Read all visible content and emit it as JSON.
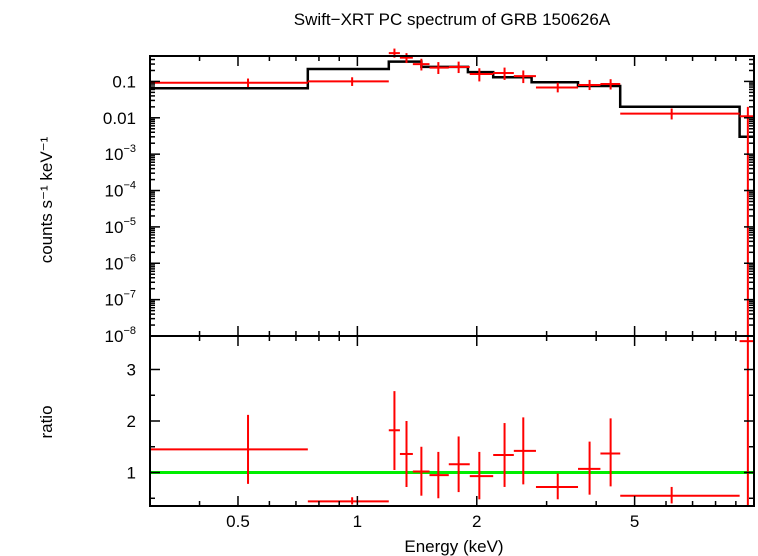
{
  "chart_data": [
    {
      "type": "line",
      "title": "Swift−XRT PC spectrum of GRB 150626A",
      "ylabel": "counts s⁻¹ keV⁻¹",
      "xlabel": "",
      "x_scale": "log",
      "y_scale": "log",
      "xlim": [
        0.3,
        10
      ],
      "ylim": [
        1e-08,
        0.5
      ],
      "ytick_labels": [
        {
          "value": 0.1,
          "label": "0.1"
        },
        {
          "value": 0.01,
          "label": "0.01"
        },
        {
          "value": 0.001,
          "base": "10",
          "exp": "−3"
        },
        {
          "value": 0.0001,
          "base": "10",
          "exp": "−4"
        },
        {
          "value": 1e-05,
          "base": "10",
          "exp": "−5"
        },
        {
          "value": 1e-06,
          "base": "10",
          "exp": "−6"
        },
        {
          "value": 1e-07,
          "base": "10",
          "exp": "−7"
        },
        {
          "value": 1e-08,
          "base": "10",
          "exp": "−8"
        }
      ],
      "series": [
        {
          "kind": "model",
          "color": "#000000",
          "steps": [
            {
              "x0": 0.3,
              "x1": 0.75,
              "y": 0.065
            },
            {
              "x0": 0.75,
              "x1": 1.2,
              "y": 0.22
            },
            {
              "x0": 1.2,
              "x1": 1.45,
              "y": 0.35
            },
            {
              "x0": 1.45,
              "x1": 1.9,
              "y": 0.25
            },
            {
              "x0": 1.9,
              "x1": 2.2,
              "y": 0.18
            },
            {
              "x0": 2.2,
              "x1": 2.75,
              "y": 0.13
            },
            {
              "x0": 2.75,
              "x1": 3.6,
              "y": 0.095
            },
            {
              "x0": 3.6,
              "x1": 4.6,
              "y": 0.075
            },
            {
              "x0": 4.6,
              "x1": 9.2,
              "y": 0.02
            },
            {
              "x0": 9.2,
              "x1": 10,
              "y": 0.003
            }
          ]
        },
        {
          "kind": "data",
          "color": "#ff0000",
          "points": [
            {
              "x": 0.53,
              "xlo": 0.3,
              "xhi": 0.75,
              "y": 0.092,
              "ylo": 0.07,
              "yhi": 0.12
            },
            {
              "x": 0.97,
              "xlo": 0.75,
              "xhi": 1.2,
              "y": 0.1,
              "ylo": 0.075,
              "yhi": 0.13
            },
            {
              "x": 1.24,
              "xlo": 1.2,
              "xhi": 1.28,
              "y": 0.6,
              "ylo": 0.45,
              "yhi": 0.8
            },
            {
              "x": 1.33,
              "xlo": 1.28,
              "xhi": 1.38,
              "y": 0.45,
              "ylo": 0.32,
              "yhi": 0.6
            },
            {
              "x": 1.45,
              "xlo": 1.38,
              "xhi": 1.52,
              "y": 0.3,
              "ylo": 0.2,
              "yhi": 0.42
            },
            {
              "x": 1.6,
              "xlo": 1.52,
              "xhi": 1.7,
              "y": 0.24,
              "ylo": 0.16,
              "yhi": 0.34
            },
            {
              "x": 1.8,
              "xlo": 1.7,
              "xhi": 1.92,
              "y": 0.25,
              "ylo": 0.17,
              "yhi": 0.35
            },
            {
              "x": 2.03,
              "xlo": 1.92,
              "xhi": 2.2,
              "y": 0.16,
              "ylo": 0.1,
              "yhi": 0.23
            },
            {
              "x": 2.35,
              "xlo": 2.2,
              "xhi": 2.48,
              "y": 0.17,
              "ylo": 0.11,
              "yhi": 0.24
            },
            {
              "x": 2.62,
              "xlo": 2.48,
              "xhi": 2.82,
              "y": 0.14,
              "ylo": 0.09,
              "yhi": 0.2
            },
            {
              "x": 3.2,
              "xlo": 2.82,
              "xhi": 3.6,
              "y": 0.068,
              "ylo": 0.05,
              "yhi": 0.092
            },
            {
              "x": 3.85,
              "xlo": 3.6,
              "xhi": 4.1,
              "y": 0.08,
              "ylo": 0.058,
              "yhi": 0.11
            },
            {
              "x": 4.35,
              "xlo": 4.1,
              "xhi": 4.6,
              "y": 0.085,
              "ylo": 0.06,
              "yhi": 0.115
            },
            {
              "x": 6.2,
              "xlo": 4.6,
              "xhi": 9.2,
              "y": 0.013,
              "ylo": 0.009,
              "yhi": 0.018
            },
            {
              "x": 9.65,
              "xlo": 9.2,
              "xhi": 10,
              "y": 0.011,
              "ylo": 1e-08,
              "yhi": 0.02
            }
          ]
        }
      ]
    },
    {
      "type": "line",
      "xlabel": "Energy (keV)",
      "ylabel": "ratio",
      "x_scale": "log",
      "xlim": [
        0.3,
        10
      ],
      "ylim": [
        0.35,
        3.65
      ],
      "xtick_labels": [
        {
          "value": 0.5,
          "label": "0.5"
        },
        {
          "value": 1,
          "label": "1"
        },
        {
          "value": 2,
          "label": "2"
        },
        {
          "value": 5,
          "label": "5"
        }
      ],
      "ytick_labels": [
        {
          "value": 1,
          "label": "1"
        },
        {
          "value": 2,
          "label": "2"
        },
        {
          "value": 3,
          "label": "3"
        }
      ],
      "series": [
        {
          "kind": "reference",
          "color": "#00ee00",
          "y": 1.0
        },
        {
          "kind": "data",
          "color": "#ff0000",
          "points": [
            {
              "x": 0.53,
              "xlo": 0.3,
              "xhi": 0.75,
              "y": 1.45,
              "ylo": 0.78,
              "yhi": 2.12
            },
            {
              "x": 0.97,
              "xlo": 0.75,
              "xhi": 1.2,
              "y": 0.44,
              "ylo": 0.38,
              "yhi": 0.52
            },
            {
              "x": 1.24,
              "xlo": 1.2,
              "xhi": 1.28,
              "y": 1.82,
              "ylo": 1.05,
              "yhi": 2.58
            },
            {
              "x": 1.33,
              "xlo": 1.28,
              "xhi": 1.38,
              "y": 1.36,
              "ylo": 0.72,
              "yhi": 2.0
            },
            {
              "x": 1.45,
              "xlo": 1.38,
              "xhi": 1.52,
              "y": 1.02,
              "ylo": 0.55,
              "yhi": 1.5
            },
            {
              "x": 1.6,
              "xlo": 1.52,
              "xhi": 1.7,
              "y": 0.95,
              "ylo": 0.5,
              "yhi": 1.4
            },
            {
              "x": 1.8,
              "xlo": 1.7,
              "xhi": 1.92,
              "y": 1.16,
              "ylo": 0.62,
              "yhi": 1.7
            },
            {
              "x": 2.03,
              "xlo": 1.92,
              "xhi": 2.2,
              "y": 0.93,
              "ylo": 0.48,
              "yhi": 1.4
            },
            {
              "x": 2.35,
              "xlo": 2.2,
              "xhi": 2.48,
              "y": 1.34,
              "ylo": 0.72,
              "yhi": 1.96
            },
            {
              "x": 2.62,
              "xlo": 2.48,
              "xhi": 2.82,
              "y": 1.42,
              "ylo": 0.77,
              "yhi": 2.07
            },
            {
              "x": 3.2,
              "xlo": 2.82,
              "xhi": 3.6,
              "y": 0.72,
              "ylo": 0.48,
              "yhi": 0.98
            },
            {
              "x": 3.85,
              "xlo": 3.6,
              "xhi": 4.1,
              "y": 1.07,
              "ylo": 0.57,
              "yhi": 1.6
            },
            {
              "x": 4.35,
              "xlo": 4.1,
              "xhi": 4.6,
              "y": 1.37,
              "ylo": 0.73,
              "yhi": 2.05
            },
            {
              "x": 6.2,
              "xlo": 4.6,
              "xhi": 9.2,
              "y": 0.55,
              "ylo": 0.4,
              "yhi": 0.72
            },
            {
              "x": 9.65,
              "xlo": 9.2,
              "xhi": 10,
              "y": 3.55,
              "ylo": 0.35,
              "yhi": 3.65
            }
          ]
        }
      ]
    }
  ]
}
